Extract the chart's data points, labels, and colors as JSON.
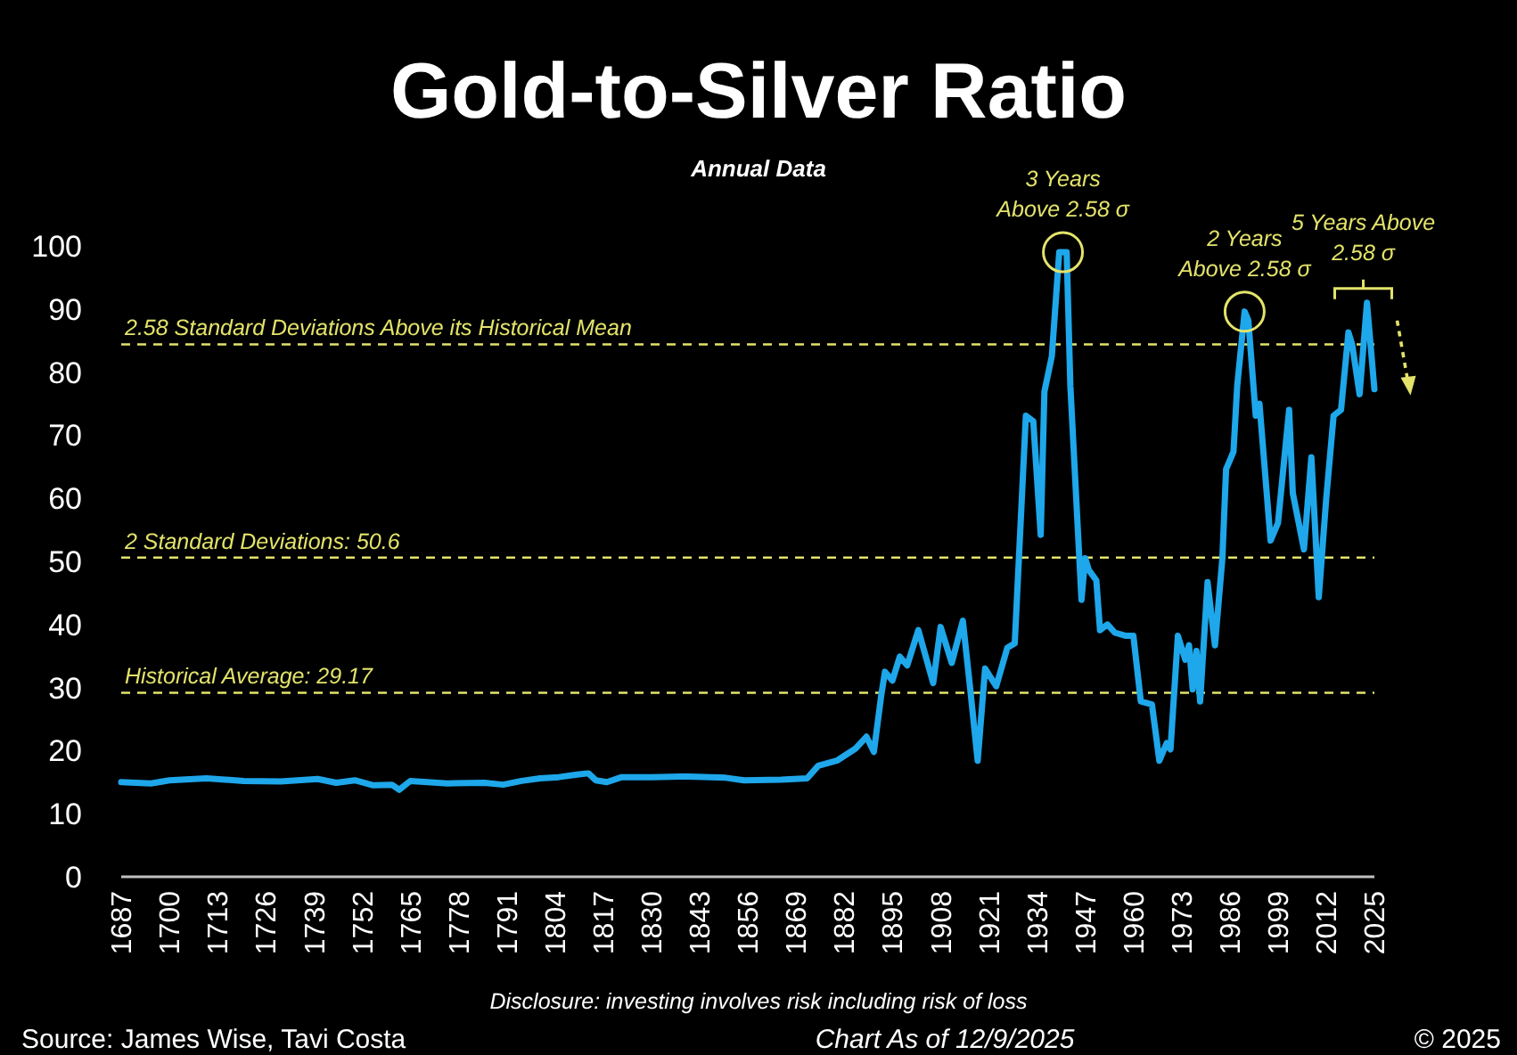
{
  "chart_data": {
    "type": "line",
    "title": "Gold-to-Silver Ratio",
    "subtitle": "Annual Data",
    "series": [
      {
        "color": "#1ea7ea",
        "x": [
          1687,
          1695,
          1700,
          1710,
          1720,
          1730,
          1740,
          1745,
          1750,
          1755,
          1760,
          1762,
          1765,
          1775,
          1785,
          1790,
          1795,
          1800,
          1805,
          1810,
          1813,
          1815,
          1818,
          1822,
          1830,
          1840,
          1850,
          1855,
          1865,
          1872,
          1875,
          1880,
          1885,
          1888,
          1890,
          1892,
          1893,
          1895,
          1897,
          1899,
          1902,
          1906,
          1908,
          1911,
          1914,
          1916,
          1918,
          1920,
          1923,
          1926,
          1928,
          1931,
          1933,
          1935,
          1936,
          1938,
          1940,
          1942,
          1943,
          1946,
          1947,
          1948,
          1950,
          1951,
          1953,
          1955,
          1958,
          1960,
          1962,
          1965,
          1967,
          1969,
          1970,
          1972,
          1974,
          1975,
          1976,
          1977,
          1978,
          1980,
          1982,
          1984,
          1985,
          1987,
          1988,
          1990,
          1991,
          1993,
          1994,
          1997,
          1999,
          2002,
          2003,
          2006,
          2008,
          2010,
          2012,
          2014,
          2016,
          2018,
          2019,
          2021,
          2023,
          2025
        ],
        "values": [
          15,
          14.8,
          15.3,
          15.6,
          15.2,
          15.1,
          15.5,
          14.9,
          15.3,
          14.5,
          14.6,
          13.8,
          15.2,
          14.8,
          14.9,
          14.6,
          15.2,
          15.6,
          15.8,
          16.2,
          16.4,
          15.3,
          15,
          15.8,
          15.8,
          15.9,
          15.7,
          15.3,
          15.4,
          15.6,
          17.6,
          18.4,
          20.3,
          22.2,
          19.8,
          28.8,
          32.5,
          31.1,
          34.9,
          33.5,
          39.1,
          30.7,
          39.6,
          33.9,
          40.6,
          29.7,
          18.4,
          33,
          30.2,
          36.3,
          37,
          73.1,
          72.2,
          54.2,
          76.9,
          82.5,
          99,
          99,
          77.8,
          43.9,
          50.5,
          48.6,
          47,
          39.1,
          40,
          38.7,
          38.2,
          38.2,
          27.8,
          27.3,
          18.4,
          21.2,
          20.2,
          38.2,
          34.4,
          36.7,
          29.7,
          35.8,
          27.8,
          46.7,
          36.7,
          50.5,
          64.6,
          67.4,
          77.8,
          89.6,
          88.2,
          73.1,
          75,
          53.3,
          56.1,
          74,
          60.8,
          51.9,
          66.5,
          44.3,
          59.9,
          73.1,
          74,
          86.3,
          84.4,
          76.5,
          91,
          77.3
        ]
      }
    ],
    "xlim": [
      1687,
      2025
    ],
    "xticks": [
      1687,
      1700,
      1713,
      1726,
      1739,
      1752,
      1765,
      1778,
      1791,
      1804,
      1817,
      1830,
      1843,
      1856,
      1869,
      1882,
      1895,
      1908,
      1921,
      1934,
      1947,
      1960,
      1973,
      1986,
      1999,
      2012,
      2025
    ],
    "ylim": [
      0,
      100
    ],
    "yticks": [
      0,
      10,
      20,
      30,
      40,
      50,
      60,
      70,
      80,
      90,
      100
    ],
    "grid": false,
    "line_style": "solid",
    "marker": "none",
    "ref_lines": [
      {
        "axis": "y",
        "value": 84.4,
        "label": "2.58 Standard Deviations Above its Historical Mean",
        "color": "#e3e36b",
        "line_style": "dashed"
      },
      {
        "axis": "y",
        "value": 50.6,
        "label": "2 Standard Deviations: 50.6",
        "color": "#e3e36b",
        "line_style": "dashed"
      },
      {
        "axis": "y",
        "value": 29.17,
        "label": "Historical Average: 29.17",
        "color": "#e3e36b",
        "line_style": "dashed"
      }
    ],
    "annotations": [
      {
        "text": "3 Years\nAbove 2.58 σ",
        "x": 1941,
        "y": 99
      },
      {
        "text": "2 Years\nAbove 2.58 σ",
        "x": 1990,
        "y": 89.6
      },
      {
        "text": "5 Years Above\n2.58 σ",
        "x": 2022,
        "y": 91
      },
      "Disclosure: investing involves risk including risk of loss",
      "Source: James Wise, Tavi Costa",
      "Chart As of 12/9/2025",
      "© 2025"
    ]
  }
}
